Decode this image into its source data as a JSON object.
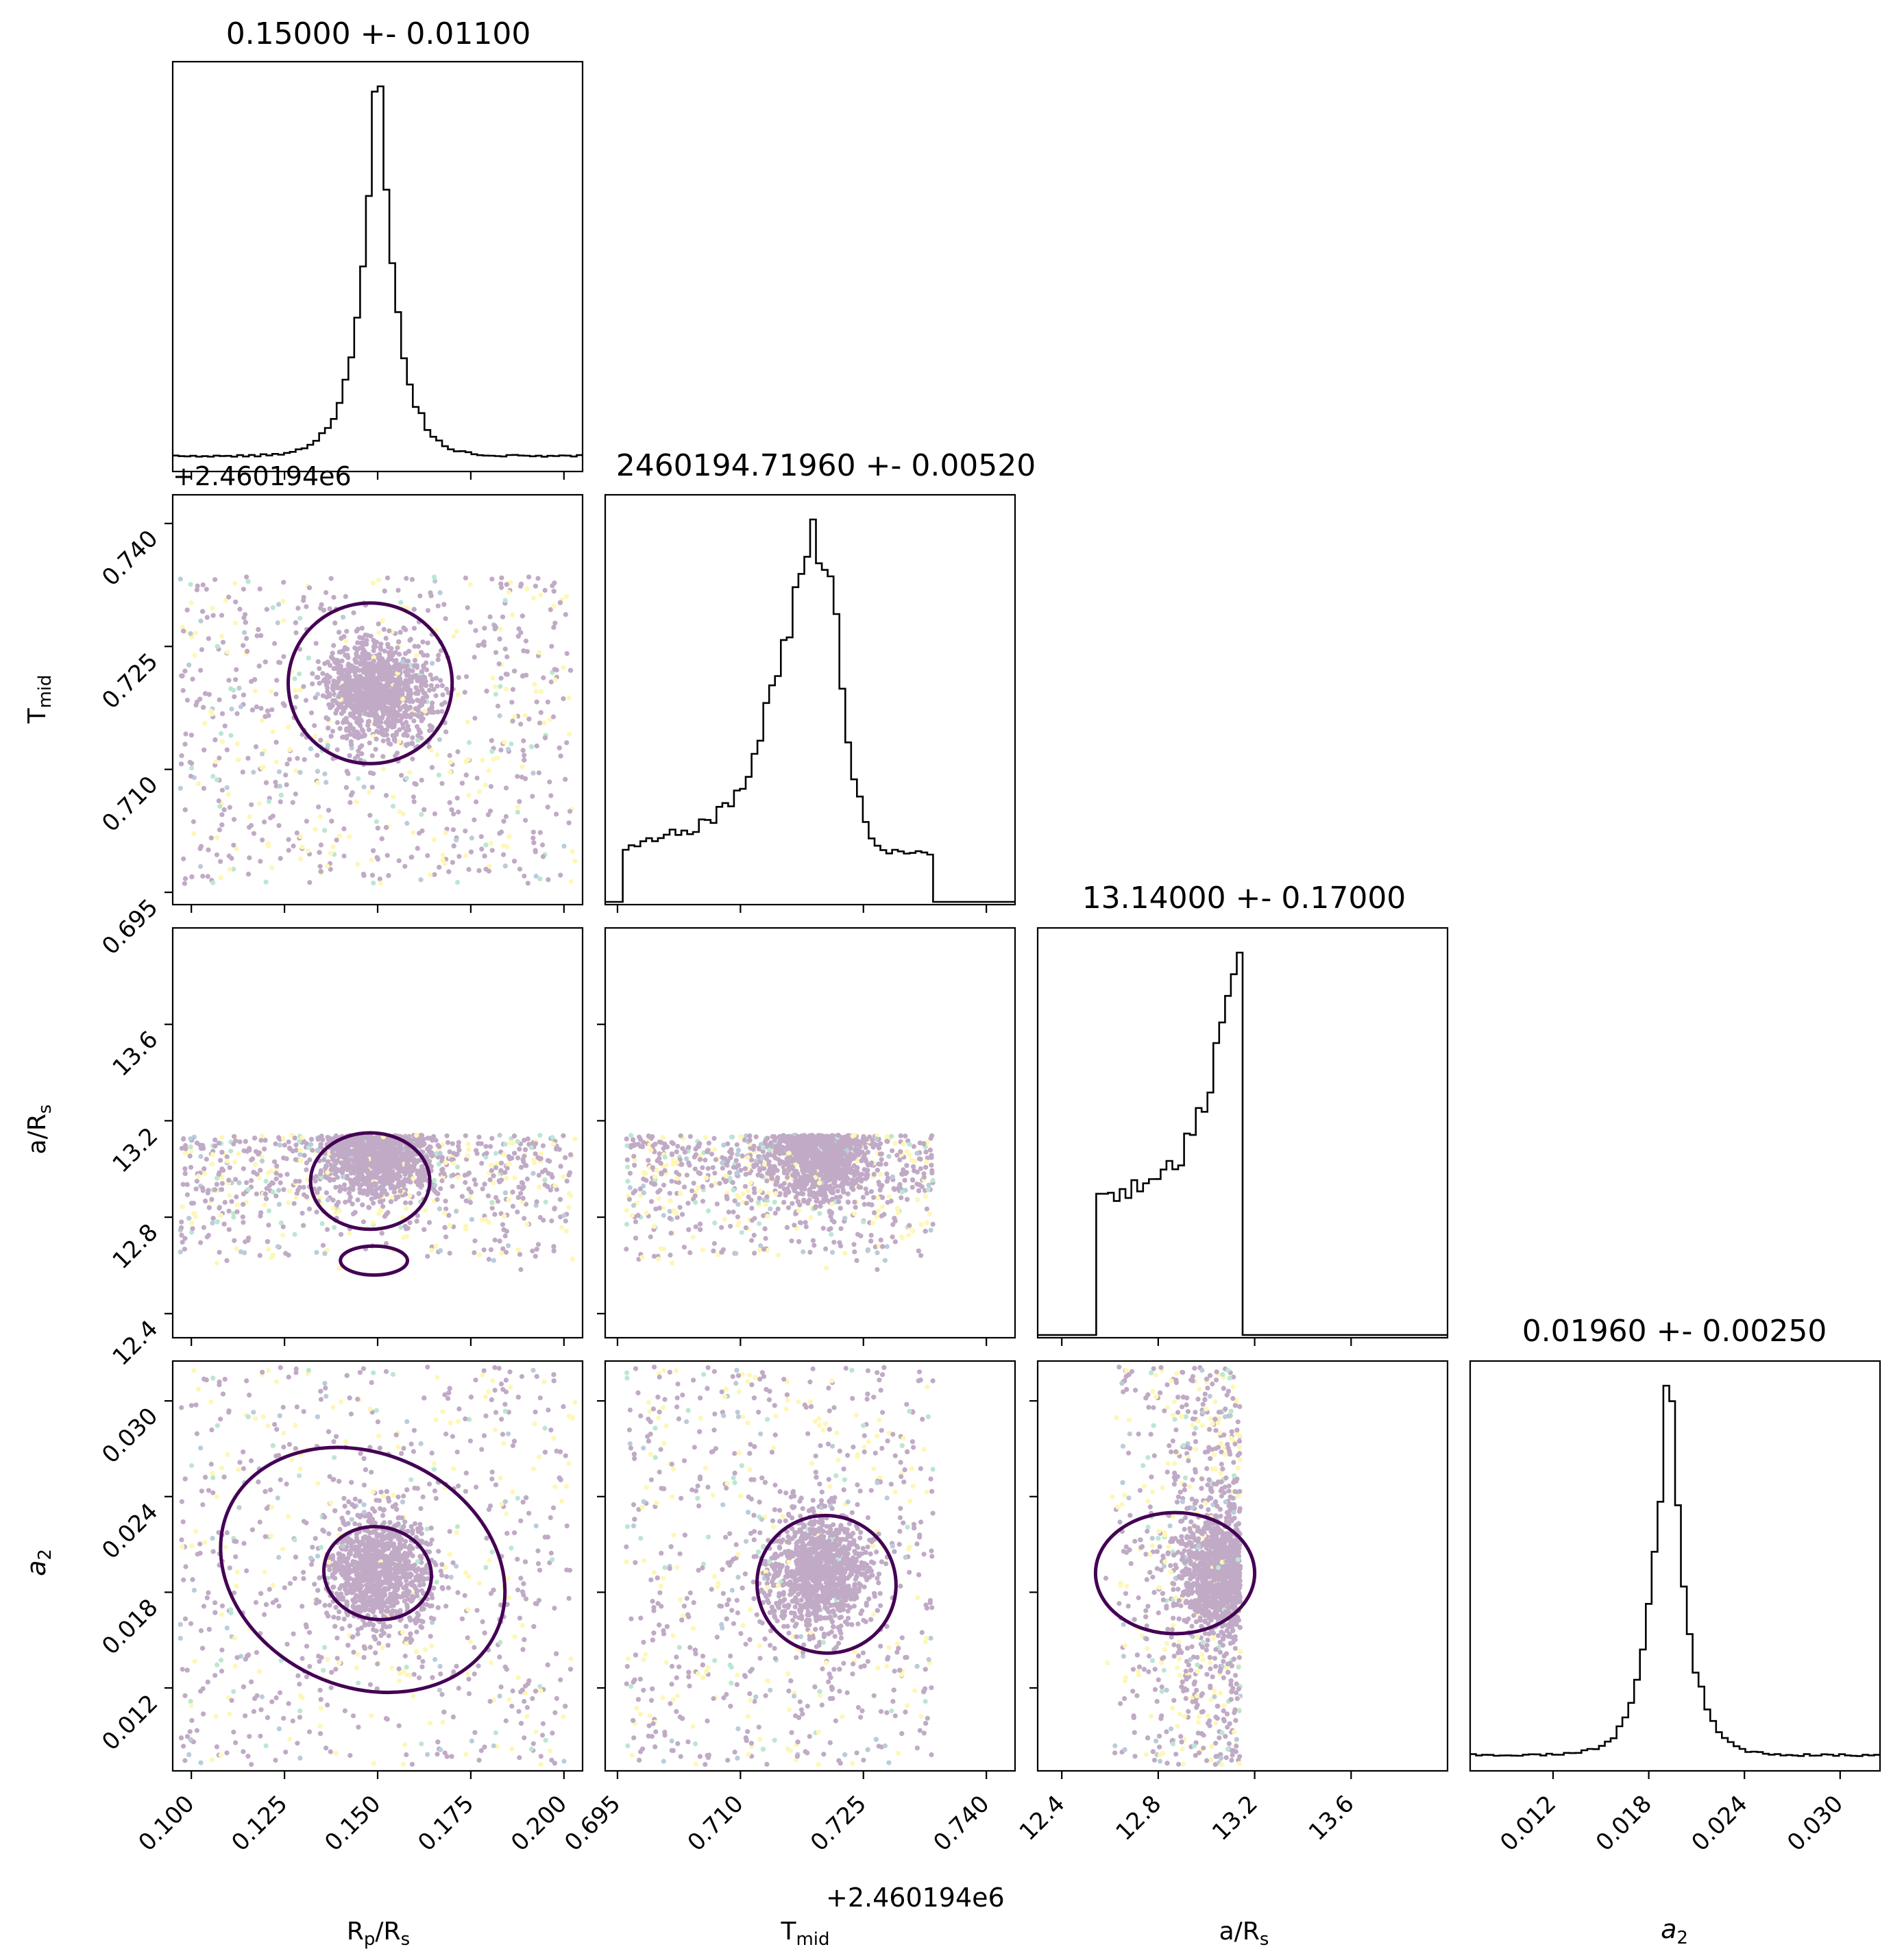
{
  "chart_data": {
    "type": "scatter",
    "kind": "corner-plot",
    "parameters": [
      {
        "key": "rp",
        "label": "R",
        "label_sub": "p",
        "label_tail": "/R",
        "label_sub2": "s",
        "range": [
          0.095,
          0.205
        ],
        "ticks": [
          0.1,
          0.125,
          0.15,
          0.175,
          0.2
        ],
        "tick_labels": [
          "0.100",
          "0.125",
          "0.150",
          "0.175",
          "0.200"
        ],
        "title": "0.15000 +- 0.01100",
        "median": 0.15,
        "sigma": 0.011
      },
      {
        "key": "tmid",
        "label": "T",
        "label_sub": "mid",
        "label_tail": "",
        "label_sub2": "",
        "range": [
          0.6935,
          0.7435
        ],
        "ticks": [
          0.695,
          0.71,
          0.725,
          0.74
        ],
        "tick_labels": [
          "0.695",
          "0.710",
          "0.725",
          "0.740"
        ],
        "offset_text": "+2.460194e6",
        "title": "2460194.71960 +- 0.00520",
        "median": 0.7196,
        "sigma": 0.0052
      },
      {
        "key": "ars",
        "label": "a/R",
        "label_sub": "s",
        "label_tail": "",
        "label_sub2": "",
        "range": [
          12.3,
          14.0
        ],
        "ticks": [
          12.4,
          12.8,
          13.2,
          13.6
        ],
        "tick_labels": [
          "12.4",
          "12.8",
          "13.2",
          "13.6"
        ],
        "title": "13.14000 +- 0.17000",
        "median": 13.14,
        "sigma": 0.17
      },
      {
        "key": "a2",
        "label": "a",
        "label_sub": "2",
        "label_tail": "",
        "label_sub2": "",
        "italic": true,
        "range": [
          0.0068,
          0.0325
        ],
        "ticks": [
          0.012,
          0.018,
          0.024,
          0.03
        ],
        "tick_labels": [
          "0.012",
          "0.018",
          "0.024",
          "0.030"
        ],
        "title": "0.01960 +- 0.00250",
        "median": 0.0196,
        "sigma": 0.0025
      }
    ],
    "histograms": {
      "rp": {
        "range": [
          0.095,
          0.205
        ],
        "shape": "peaked",
        "center": 0.15,
        "width": 0.0045,
        "floor": 0.03
      },
      "tmid": {
        "range": [
          0.696,
          0.7335
        ],
        "shape": "skewed",
        "center": 0.7196,
        "width": 0.0022,
        "floor": 0.15
      },
      "ars": {
        "range": [
          12.55,
          13.14
        ],
        "shape": "rising",
        "center": 13.14,
        "width": 0.17,
        "floor": 0.35
      },
      "a2": {
        "range": [
          0.0068,
          0.0325
        ],
        "shape": "peaked",
        "center": 0.0192,
        "width": 0.001,
        "floor": 0.03
      }
    },
    "point_colors": [
      "#440154",
      "#31688e",
      "#35b779",
      "#fde725"
    ],
    "contour_color": "#440154",
    "grid": false,
    "legend": "none"
  }
}
